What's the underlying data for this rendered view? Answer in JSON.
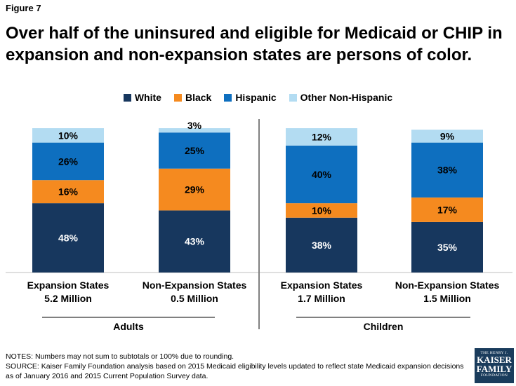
{
  "figure_label": "Figure 7",
  "title": "Over half of the uninsured and eligible for Medicaid or CHIP in expansion and non-expansion states are persons of color.",
  "legend": [
    {
      "label": "White",
      "color": "#17375e"
    },
    {
      "label": "Black",
      "color": "#f58a1f"
    },
    {
      "label": "Hispanic",
      "color": "#0e6fbf"
    },
    {
      "label": "Other Non-Hispanic",
      "color": "#b3dcf2"
    }
  ],
  "chart_data": {
    "type": "bar",
    "stacked": true,
    "title": "Over half of the uninsured and eligible for Medicaid or CHIP in expansion and non-expansion states are persons of color.",
    "categories": [
      {
        "name": "Expansion States",
        "sub": "5.2 Million",
        "group": "Adults"
      },
      {
        "name": "Non-Expansion States",
        "sub": "0.5 Million",
        "group": "Adults"
      },
      {
        "name": "Expansion States",
        "sub": "1.7 Million",
        "group": "Children"
      },
      {
        "name": "Non-Expansion States",
        "sub": "1.5 Million",
        "group": "Children"
      }
    ],
    "groups": [
      "Adults",
      "Children"
    ],
    "series": [
      {
        "name": "White",
        "color": "#17375e",
        "values": [
          48,
          43,
          38,
          35
        ],
        "labels": [
          "48%",
          "43%",
          "38%",
          "35%"
        ]
      },
      {
        "name": "Black",
        "color": "#f58a1f",
        "values": [
          16,
          29,
          10,
          17
        ],
        "labels": [
          "16%",
          "29%",
          "10%",
          "17%"
        ]
      },
      {
        "name": "Hispanic",
        "color": "#0e6fbf",
        "values": [
          26,
          25,
          40,
          38
        ],
        "labels": [
          "26%",
          "25%",
          "40%",
          "38%"
        ]
      },
      {
        "name": "Other Non-Hispanic",
        "color": "#b3dcf2",
        "values": [
          10,
          3,
          12,
          9
        ],
        "labels": [
          "10%",
          "3%",
          "12%",
          "9%"
        ]
      }
    ],
    "ylim": [
      0,
      100
    ]
  },
  "notes": {
    "line1": "NOTES: Numbers may not sum to subtotals or 100% due to rounding.",
    "line2": "SOURCE: Kaiser Family Foundation analysis based on 2015 Medicaid eligibility levels updated to reflect state Medicaid expansion decisions as of January 2016 and 2015 Current Population Survey data."
  },
  "logo": {
    "line1": "THE HENRY J.",
    "line2": "KAISER",
    "line3": "FAMILY",
    "line4": "FOUNDATION"
  }
}
